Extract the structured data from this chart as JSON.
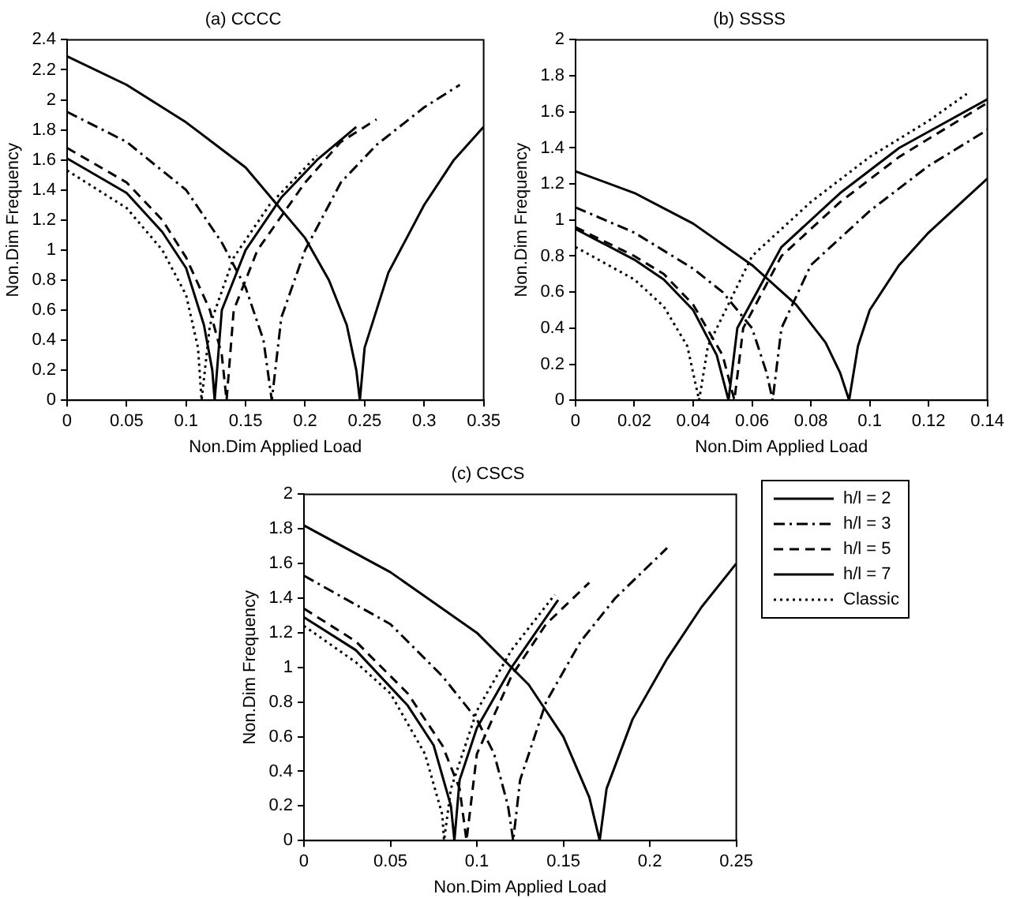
{
  "chart_data": [
    {
      "type": "line",
      "title": "(a) CCCC",
      "xlabel": "Non.Dim Applied Load",
      "ylabel": "Non.Dim Frequency",
      "xlim": [
        0,
        0.35
      ],
      "xticks": [
        0,
        0.05,
        0.1,
        0.15,
        0.2,
        0.25,
        0.3,
        0.35
      ],
      "ylim": [
        0,
        2.4
      ],
      "yticks": [
        0,
        0.2,
        0.4,
        0.6,
        0.8,
        1,
        1.2,
        1.4,
        1.6,
        1.8,
        2,
        2.2,
        2.4
      ],
      "grid": false,
      "legend": false,
      "series": [
        {
          "color": "#000000",
          "line_style": "solid",
          "x": [
            0,
            0.05,
            0.1,
            0.15,
            0.2,
            0.22,
            0.235,
            0.243,
            0.246,
            0.25,
            0.27,
            0.3,
            0.325,
            0.35
          ],
          "values": [
            2.29,
            2.1,
            1.85,
            1.55,
            1.08,
            0.8,
            0.5,
            0.2,
            0,
            0.35,
            0.85,
            1.3,
            1.6,
            1.82
          ]
        },
        {
          "color": "#000000",
          "line_style": "dashdot",
          "x": [
            0,
            0.05,
            0.1,
            0.13,
            0.15,
            0.165,
            0.172,
            0.18,
            0.2,
            0.23,
            0.26,
            0.3,
            0.33
          ],
          "values": [
            1.92,
            1.72,
            1.4,
            1.05,
            0.75,
            0.4,
            0,
            0.55,
            1,
            1.45,
            1.7,
            1.95,
            2.1
          ]
        },
        {
          "color": "#000000",
          "line_style": "dashed",
          "x": [
            0,
            0.05,
            0.08,
            0.1,
            0.12,
            0.13,
            0.134,
            0.14,
            0.16,
            0.2,
            0.23,
            0.26
          ],
          "values": [
            1.68,
            1.45,
            1.2,
            0.95,
            0.6,
            0.3,
            0,
            0.6,
            1,
            1.45,
            1.72,
            1.87
          ]
        },
        {
          "color": "#000000",
          "line_style": "solid",
          "x": [
            0,
            0.05,
            0.08,
            0.1,
            0.115,
            0.122,
            0.124,
            0.13,
            0.15,
            0.18,
            0.21,
            0.243
          ],
          "values": [
            1.61,
            1.38,
            1.12,
            0.88,
            0.5,
            0.2,
            0,
            0.6,
            1,
            1.35,
            1.6,
            1.82
          ]
        },
        {
          "color": "#000000",
          "line_style": "dotted",
          "x": [
            0,
            0.05,
            0.08,
            0.1,
            0.11,
            0.113,
            0.12,
            0.14,
            0.17,
            0.21
          ],
          "values": [
            1.53,
            1.28,
            1,
            0.7,
            0.35,
            0,
            0.5,
            0.95,
            1.3,
            1.63
          ]
        }
      ]
    },
    {
      "type": "line",
      "title": "(b) SSSS",
      "xlabel": "Non.Dim Applied Load",
      "ylabel": "Non.Dim Frequency",
      "xlim": [
        0,
        0.14
      ],
      "xticks": [
        0,
        0.02,
        0.04,
        0.06,
        0.08,
        0.1,
        0.12,
        0.14
      ],
      "ylim": [
        0,
        2
      ],
      "yticks": [
        0,
        0.2,
        0.4,
        0.6,
        0.8,
        1,
        1.2,
        1.4,
        1.6,
        1.8,
        2
      ],
      "grid": false,
      "legend": false,
      "series": [
        {
          "color": "#000000",
          "line_style": "solid",
          "x": [
            0,
            0.02,
            0.04,
            0.06,
            0.075,
            0.085,
            0.09,
            0.093,
            0.096,
            0.1,
            0.11,
            0.12,
            0.13,
            0.14
          ],
          "values": [
            1.27,
            1.15,
            0.98,
            0.75,
            0.53,
            0.32,
            0.15,
            0,
            0.3,
            0.5,
            0.75,
            0.93,
            1.08,
            1.23
          ]
        },
        {
          "color": "#000000",
          "line_style": "dashdot",
          "x": [
            0,
            0.02,
            0.04,
            0.05,
            0.06,
            0.065,
            0.067,
            0.07,
            0.08,
            0.1,
            0.12,
            0.14
          ],
          "values": [
            1.07,
            0.93,
            0.73,
            0.6,
            0.4,
            0.15,
            0,
            0.4,
            0.75,
            1.05,
            1.3,
            1.5
          ]
        },
        {
          "color": "#000000",
          "line_style": "dashed",
          "x": [
            0,
            0.02,
            0.03,
            0.04,
            0.05,
            0.054,
            0.057,
            0.07,
            0.09,
            0.11,
            0.14
          ],
          "values": [
            0.96,
            0.8,
            0.7,
            0.53,
            0.25,
            0,
            0.4,
            0.8,
            1.1,
            1.35,
            1.65
          ]
        },
        {
          "color": "#000000",
          "line_style": "solid",
          "x": [
            0,
            0.02,
            0.03,
            0.04,
            0.048,
            0.052,
            0.055,
            0.07,
            0.09,
            0.11,
            0.14
          ],
          "values": [
            0.95,
            0.78,
            0.67,
            0.5,
            0.25,
            0,
            0.4,
            0.85,
            1.15,
            1.4,
            1.67
          ]
        },
        {
          "color": "#000000",
          "line_style": "dotted",
          "x": [
            0,
            0.02,
            0.03,
            0.038,
            0.042,
            0.045,
            0.06,
            0.08,
            0.1,
            0.12,
            0.133
          ],
          "values": [
            0.85,
            0.67,
            0.52,
            0.3,
            0,
            0.3,
            0.8,
            1.1,
            1.35,
            1.55,
            1.7
          ]
        }
      ]
    },
    {
      "type": "line",
      "title": "(c) CSCS",
      "xlabel": "Non.Dim Applied Load",
      "ylabel": "Non.Dim Frequency",
      "xlim": [
        0,
        0.25
      ],
      "xticks": [
        0,
        0.05,
        0.1,
        0.15,
        0.2,
        0.25
      ],
      "ylim": [
        0,
        2
      ],
      "yticks": [
        0,
        0.2,
        0.4,
        0.6,
        0.8,
        1,
        1.2,
        1.4,
        1.6,
        1.8,
        2
      ],
      "grid": false,
      "legend": "top right",
      "series": [
        {
          "name": "h/l = 2",
          "color": "#000000",
          "line_style": "solid",
          "x": [
            0,
            0.05,
            0.1,
            0.13,
            0.15,
            0.165,
            0.171,
            0.175,
            0.19,
            0.21,
            0.23,
            0.25
          ],
          "values": [
            1.82,
            1.55,
            1.2,
            0.9,
            0.6,
            0.25,
            0,
            0.3,
            0.7,
            1.05,
            1.35,
            1.6
          ]
        },
        {
          "name": "h/l = 3",
          "color": "#000000",
          "line_style": "dashdot",
          "x": [
            0,
            0.05,
            0.08,
            0.1,
            0.11,
            0.118,
            0.121,
            0.125,
            0.14,
            0.16,
            0.18,
            0.21
          ],
          "values": [
            1.53,
            1.25,
            0.95,
            0.7,
            0.5,
            0.2,
            0,
            0.35,
            0.8,
            1.15,
            1.4,
            1.69
          ]
        },
        {
          "name": "h/l = 5",
          "color": "#000000",
          "line_style": "dashed",
          "x": [
            0,
            0.03,
            0.06,
            0.08,
            0.09,
            0.094,
            0.1,
            0.12,
            0.14,
            0.165
          ],
          "values": [
            1.34,
            1.15,
            0.85,
            0.55,
            0.3,
            0,
            0.5,
            0.95,
            1.25,
            1.49
          ]
        },
        {
          "name": "h/l = 7",
          "color": "#000000",
          "line_style": "solid",
          "x": [
            0,
            0.03,
            0.06,
            0.075,
            0.085,
            0.087,
            0.09,
            0.1,
            0.12,
            0.147
          ],
          "values": [
            1.29,
            1.1,
            0.78,
            0.55,
            0.2,
            0,
            0.35,
            0.65,
            1,
            1.39
          ]
        },
        {
          "name": "Classic",
          "color": "#000000",
          "line_style": "dotted",
          "x": [
            0,
            0.03,
            0.05,
            0.07,
            0.08,
            0.081,
            0.085,
            0.1,
            0.12,
            0.145
          ],
          "values": [
            1.24,
            1.03,
            0.85,
            0.5,
            0.15,
            0,
            0.3,
            0.75,
            1.1,
            1.42
          ]
        }
      ]
    }
  ]
}
